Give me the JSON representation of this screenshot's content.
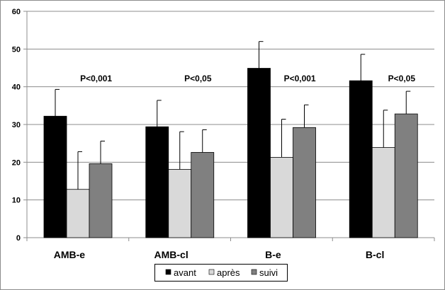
{
  "chart_data": {
    "type": "bar",
    "title": "",
    "xlabel": "",
    "ylabel": "",
    "ylim": [
      0,
      60
    ],
    "yticks": [
      0,
      10,
      20,
      30,
      40,
      50,
      60
    ],
    "grid": true,
    "legend_position": "bottom",
    "categories": [
      "AMB-e",
      "AMB-cl",
      "B-e",
      "B-cl"
    ],
    "series": [
      {
        "name": "avant",
        "color": "#000000",
        "values": [
          32.2,
          29.4,
          44.9,
          41.6
        ],
        "error_upper": [
          39.3,
          36.4,
          52.0,
          48.6
        ]
      },
      {
        "name": "après",
        "color": "#d9d9d9",
        "values": [
          12.8,
          18.1,
          21.3,
          23.9
        ],
        "error_upper": [
          22.8,
          28.1,
          31.4,
          33.8
        ]
      },
      {
        "name": "suivi",
        "color": "#808080",
        "values": [
          19.6,
          22.6,
          29.2,
          32.8
        ],
        "error_upper": [
          25.6,
          28.6,
          35.2,
          38.8
        ]
      }
    ],
    "annotations": [
      "P<0,001",
      "P<0,05",
      "P<0,001",
      "P<0,05"
    ]
  }
}
